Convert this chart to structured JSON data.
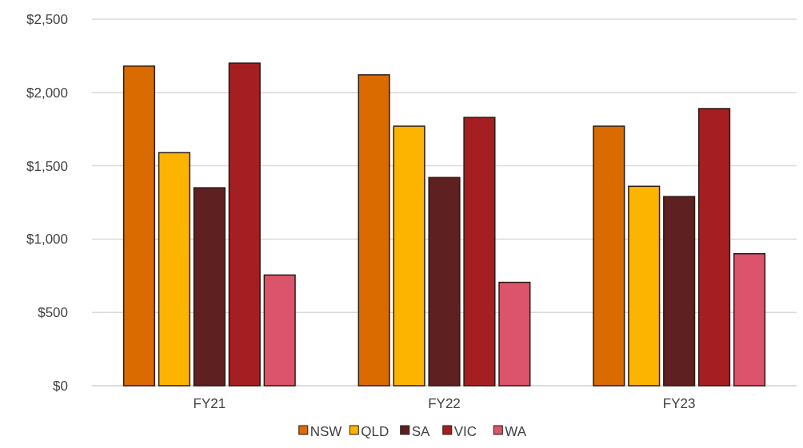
{
  "chart_data": {
    "type": "bar",
    "categories": [
      "FY21",
      "FY22",
      "FY23"
    ],
    "series": [
      {
        "name": "NSW",
        "color": "#d96b00",
        "values": [
          2180,
          2120,
          1770
        ]
      },
      {
        "name": "QLD",
        "color": "#fdb400",
        "values": [
          1590,
          1770,
          1360
        ]
      },
      {
        "name": "SA",
        "color": "#5e2020",
        "values": [
          1350,
          1420,
          1290
        ]
      },
      {
        "name": "VIC",
        "color": "#a51f22",
        "values": [
          2200,
          1830,
          1890
        ]
      },
      {
        "name": "WA",
        "color": "#dc546b",
        "values": [
          755,
          705,
          900
        ]
      }
    ],
    "ylim": [
      0,
      2500
    ],
    "yticks": [
      {
        "value": 0,
        "label": "$0"
      },
      {
        "value": 500,
        "label": "$500"
      },
      {
        "value": 1000,
        "label": "$1,000"
      },
      {
        "value": 1500,
        "label": "$1,500"
      },
      {
        "value": 2000,
        "label": "$2,000"
      },
      {
        "value": 2500,
        "label": "$2,500"
      }
    ],
    "grid": "y",
    "legend": "bottom"
  }
}
